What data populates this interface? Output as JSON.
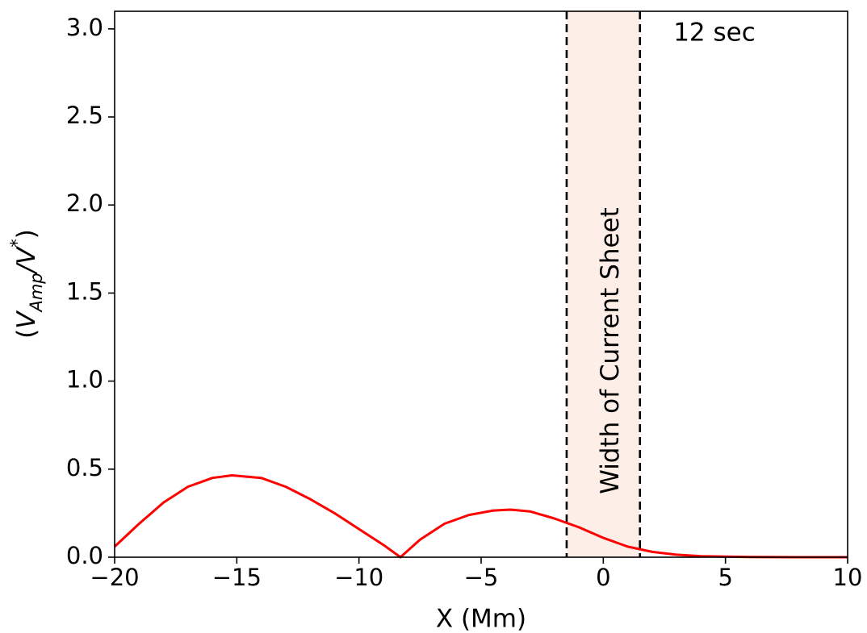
{
  "chart_data": {
    "type": "line",
    "xlabel": "X (Mm)",
    "ylabel": {
      "open": "(",
      "v1": "V",
      "v1_sub": "Amp",
      "slash": "/",
      "v2": "V",
      "v2_sup": "*",
      "close": ")"
    },
    "xlim": [
      -20,
      10
    ],
    "ylim": [
      0,
      3.1
    ],
    "xticks": [
      {
        "value": -20,
        "label": "−20"
      },
      {
        "value": -15,
        "label": "−15"
      },
      {
        "value": -10,
        "label": "−10"
      },
      {
        "value": -5,
        "label": "−5"
      },
      {
        "value": 0,
        "label": "0"
      },
      {
        "value": 5,
        "label": "5"
      },
      {
        "value": 10,
        "label": "10"
      }
    ],
    "yticks": [
      {
        "value": 0.0,
        "label": "0.0"
      },
      {
        "value": 0.5,
        "label": "0.5"
      },
      {
        "value": 1.0,
        "label": "1.0"
      },
      {
        "value": 1.5,
        "label": "1.5"
      },
      {
        "value": 2.0,
        "label": "2.0"
      },
      {
        "value": 2.5,
        "label": "2.5"
      },
      {
        "value": 3.0,
        "label": "3.0"
      }
    ],
    "grid": false,
    "series": [
      {
        "color": "#ff0000",
        "x": [
          -20,
          -19,
          -18,
          -17,
          -16,
          -15.2,
          -14,
          -13,
          -12,
          -11,
          -10,
          -9,
          -8.3,
          -7.5,
          -6.5,
          -5.5,
          -4.5,
          -3.8,
          -3,
          -2,
          -1,
          0,
          1,
          2,
          3,
          4,
          5,
          6,
          7,
          8,
          9,
          10
        ],
        "y": [
          0.06,
          0.19,
          0.31,
          0.4,
          0.45,
          0.465,
          0.45,
          0.4,
          0.33,
          0.25,
          0.16,
          0.07,
          0.0,
          0.1,
          0.19,
          0.24,
          0.265,
          0.27,
          0.26,
          0.22,
          0.17,
          0.11,
          0.06,
          0.03,
          0.014,
          0.006,
          0.003,
          0.001,
          0.0005,
          0.0002,
          0.0001,
          0.0
        ]
      }
    ],
    "shaded_region": {
      "x": [
        -1.5,
        1.5
      ],
      "color": "#fdeee8",
      "border_color": "#000000",
      "border_style": "dashed",
      "label": "Width of Current Sheet",
      "label_color": "#0000ff"
    },
    "annotations": [
      {
        "text": "12 sec",
        "color": "#ff00ff",
        "position": "top-right"
      }
    ]
  }
}
